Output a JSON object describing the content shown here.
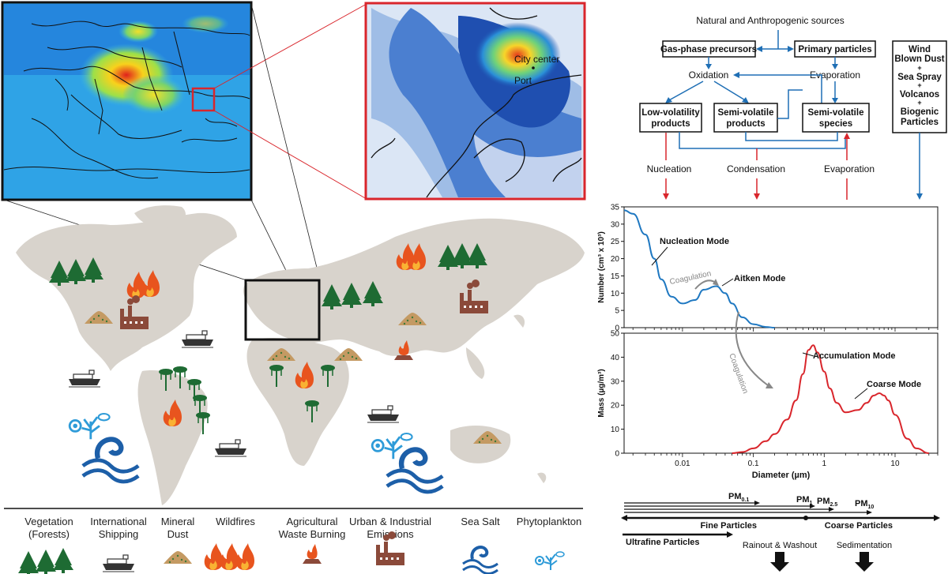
{
  "map_inset": {
    "city_label": "City center",
    "port_label": "Port"
  },
  "flow": {
    "top_source": "Natural and Anthropogenic sources",
    "gas_phase": "Gas-phase precursors",
    "primary": "Primary particles",
    "oxidation": "Oxidation",
    "evaporation_mid": "Evaporation",
    "low_vol_1": "Low-volatility",
    "low_vol_2": "products",
    "semi_vol_1": "Semi-volatile",
    "semi_vol_2": "products",
    "semi_sp_1": "Semi-volatile",
    "semi_sp_2": "species",
    "wind_1": "Wind",
    "wind_2": "Blown Dust",
    "plus": "+",
    "wind_3": "Sea Spray",
    "wind_4": "Volcanos",
    "wind_5": "Biogenic",
    "wind_6": "Particles",
    "nucleation": "Nucleation",
    "condensation": "Condensation",
    "evaporation_bottom": "Evaporation",
    "colors": {
      "blue": "#1f6fb5",
      "red": "#d9262c"
    }
  },
  "chart_data": [
    {
      "type": "line",
      "ylabel": "Number (cm³ x 10³)",
      "xscale": "log",
      "xlim": [
        0.0015,
        40
      ],
      "ylim": [
        0,
        35
      ],
      "yticks": [
        "0",
        "5",
        "10",
        "15",
        "20",
        "25",
        "30",
        "35"
      ],
      "annotations": {
        "nucleation": "Nucleation Mode",
        "aitken": "Aitken Mode",
        "coag": "Coagulation"
      },
      "series": [
        {
          "color": "#1f78c1",
          "x": [
            0.0015,
            0.002,
            0.003,
            0.004,
            0.005,
            0.007,
            0.01,
            0.015,
            0.02,
            0.03,
            0.04,
            0.05,
            0.07,
            0.1,
            0.15,
            0.2
          ],
          "y": [
            34,
            33,
            27,
            20,
            14,
            9,
            7,
            8,
            11,
            12,
            10,
            7,
            3,
            1,
            0.2,
            0
          ]
        }
      ]
    },
    {
      "type": "line",
      "ylabel": "Mass (µg/m³)",
      "xlabel": "Diameter (µm)",
      "xscale": "log",
      "xlim": [
        0.0015,
        40
      ],
      "ylim": [
        0,
        50
      ],
      "yticks": [
        "0",
        "10",
        "20",
        "30",
        "40",
        "50"
      ],
      "xticks": [
        "0.01",
        "0.1",
        "1",
        "10"
      ],
      "annotations": {
        "accumulation": "Accumulation Mode",
        "coarse": "Coarse Mode",
        "coag": "Coagulation"
      },
      "series": [
        {
          "color": "#d9262c",
          "x": [
            0.05,
            0.07,
            0.1,
            0.15,
            0.2,
            0.3,
            0.4,
            0.5,
            0.6,
            0.7,
            0.8,
            1,
            1.2,
            1.5,
            2,
            3,
            4,
            5,
            6,
            7,
            8,
            10,
            15,
            20,
            30
          ],
          "y": [
            0,
            0.5,
            2,
            5,
            8,
            14,
            22,
            33,
            43,
            45,
            42,
            34,
            27,
            21,
            17,
            18,
            21,
            24,
            25,
            24,
            22,
            16,
            6,
            2,
            0
          ]
        }
      ]
    }
  ],
  "pm_scale": {
    "pm01": "PM",
    "pm01_sub": "0.1",
    "pm1": "PM",
    "pm1_sub": "1",
    "pm25": "PM",
    "pm25_sub": "2.5",
    "pm10": "PM",
    "pm10_sub": "10",
    "fine": "Fine Particles",
    "coarse": "Coarse Particles",
    "ultrafine": "Ultrafine Particles",
    "rainout": "Rainout & Washout",
    "sedimentation": "Sedimentation"
  },
  "legend": [
    {
      "line1": "Vegetation",
      "line2": "(Forests)",
      "icon": "tree-icon"
    },
    {
      "line1": "International",
      "line2": "Shipping",
      "icon": "ship-icon"
    },
    {
      "line1": "Mineral",
      "line2": "Dust",
      "icon": "dust-icon"
    },
    {
      "line1": "Wildfires",
      "line2": "",
      "icon": "fire-icon"
    },
    {
      "line1": "Agricultural",
      "line2": "Waste Burning",
      "icon": "burning-pile-icon"
    },
    {
      "line1": "Urban & Industrial",
      "line2": "Emissions",
      "icon": "factory-icon"
    },
    {
      "line1": "Sea Salt",
      "line2": "",
      "icon": "wave-icon"
    },
    {
      "line1": "Phytoplankton",
      "line2": "",
      "icon": "plankton-icon"
    }
  ]
}
